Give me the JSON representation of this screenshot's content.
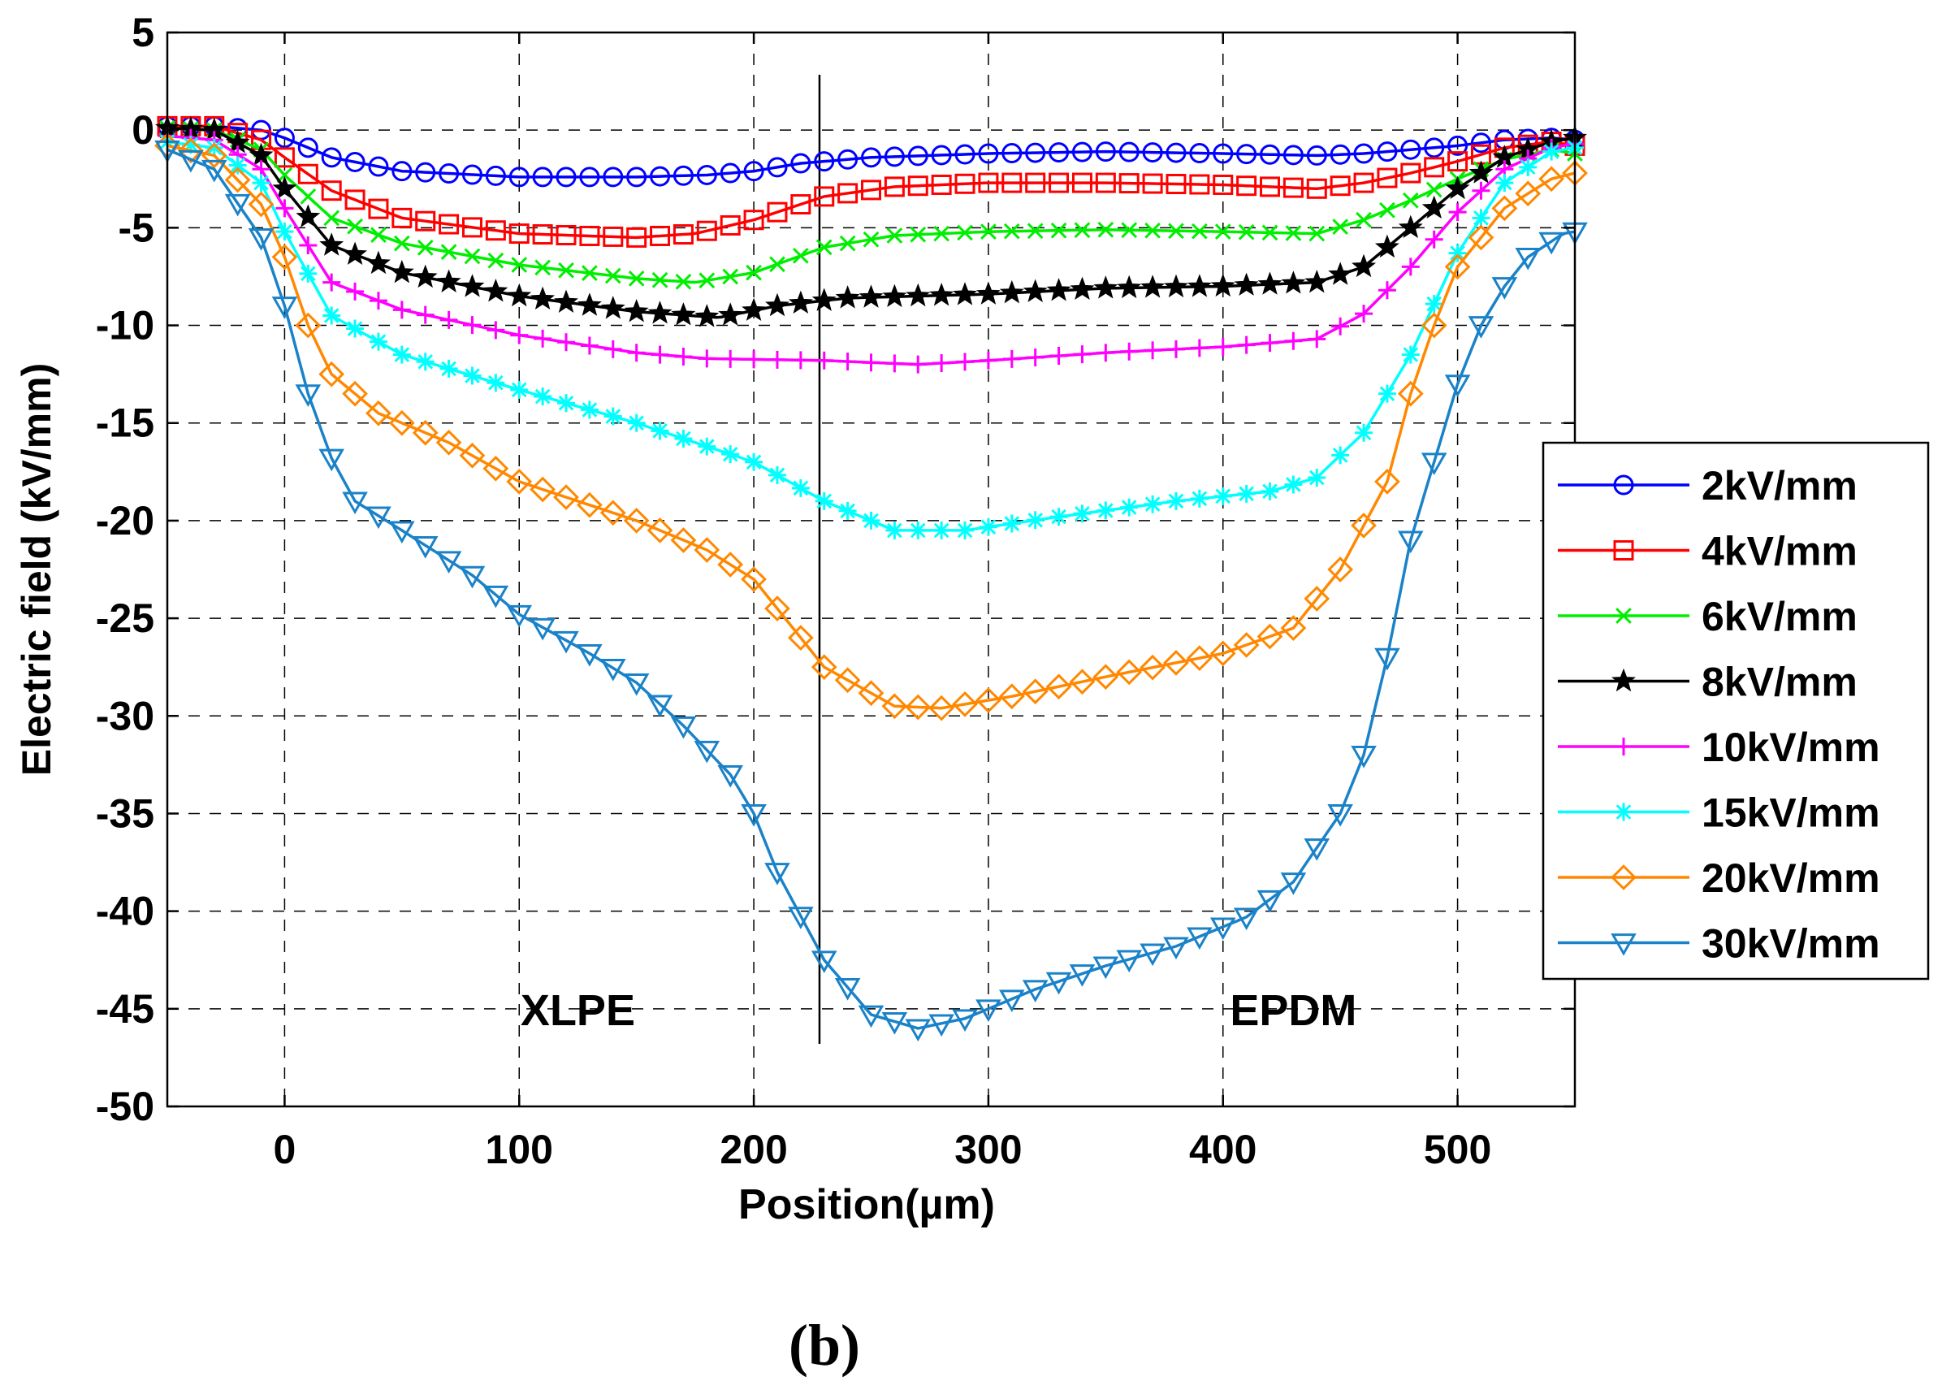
{
  "chart_data": {
    "type": "line",
    "title": "",
    "xlabel": "Position(µm)",
    "ylabel": "Electric field (kV/mm)",
    "xlim": [
      -50,
      550
    ],
    "ylim": [
      -50,
      5
    ],
    "xticks": [
      0,
      100,
      200,
      300,
      400,
      500
    ],
    "yticks": [
      5,
      0,
      -5,
      -10,
      -15,
      -20,
      -25,
      -30,
      -35,
      -40,
      -45,
      -50
    ],
    "grid": true,
    "legend_position": "right",
    "interface_x": 228,
    "annotations": [
      {
        "text": "XLPE",
        "x": 125,
        "y": -45
      },
      {
        "text": "EPDM",
        "x": 430,
        "y": -45
      }
    ],
    "caption": "(b)",
    "series": [
      {
        "name": "2kV/mm",
        "color": "#0000ff",
        "marker": "circle",
        "points": [
          [
            -50,
            0.2
          ],
          [
            -30,
            0.2
          ],
          [
            -10,
            0
          ],
          [
            0,
            -0.4
          ],
          [
            20,
            -1.4
          ],
          [
            50,
            -2.1
          ],
          [
            100,
            -2.4
          ],
          [
            150,
            -2.4
          ],
          [
            180,
            -2.3
          ],
          [
            200,
            -2.1
          ],
          [
            220,
            -1.7
          ],
          [
            250,
            -1.4
          ],
          [
            300,
            -1.2
          ],
          [
            350,
            -1.1
          ],
          [
            400,
            -1.2
          ],
          [
            440,
            -1.3
          ],
          [
            460,
            -1.2
          ],
          [
            480,
            -1.0
          ],
          [
            500,
            -0.8
          ],
          [
            520,
            -0.5
          ],
          [
            540,
            -0.4
          ],
          [
            550,
            -0.5
          ]
        ]
      },
      {
        "name": "4kV/mm",
        "color": "#ff0000",
        "marker": "square",
        "points": [
          [
            -50,
            0.2
          ],
          [
            -30,
            0.2
          ],
          [
            -10,
            -0.5
          ],
          [
            0,
            -1.4
          ],
          [
            20,
            -3.1
          ],
          [
            50,
            -4.5
          ],
          [
            100,
            -5.3
          ],
          [
            150,
            -5.5
          ],
          [
            175,
            -5.3
          ],
          [
            200,
            -4.6
          ],
          [
            230,
            -3.4
          ],
          [
            260,
            -2.9
          ],
          [
            300,
            -2.7
          ],
          [
            350,
            -2.7
          ],
          [
            400,
            -2.8
          ],
          [
            440,
            -3.0
          ],
          [
            460,
            -2.7
          ],
          [
            480,
            -2.2
          ],
          [
            500,
            -1.6
          ],
          [
            520,
            -0.9
          ],
          [
            540,
            -0.6
          ],
          [
            550,
            -0.8
          ]
        ]
      },
      {
        "name": "6kV/mm",
        "color": "#00ee00",
        "marker": "x",
        "points": [
          [
            -50,
            0.1
          ],
          [
            -30,
            0
          ],
          [
            -10,
            -1.0
          ],
          [
            0,
            -2.3
          ],
          [
            20,
            -4.5
          ],
          [
            50,
            -5.8
          ],
          [
            100,
            -6.9
          ],
          [
            150,
            -7.6
          ],
          [
            175,
            -7.8
          ],
          [
            200,
            -7.3
          ],
          [
            230,
            -6.0
          ],
          [
            260,
            -5.4
          ],
          [
            300,
            -5.2
          ],
          [
            350,
            -5.1
          ],
          [
            400,
            -5.2
          ],
          [
            440,
            -5.3
          ],
          [
            460,
            -4.6
          ],
          [
            480,
            -3.6
          ],
          [
            500,
            -2.5
          ],
          [
            520,
            -1.5
          ],
          [
            540,
            -1.0
          ],
          [
            550,
            -1.2
          ]
        ]
      },
      {
        "name": "8kV/mm",
        "color": "#000000",
        "marker": "star",
        "points": [
          [
            -50,
            0.1
          ],
          [
            -30,
            0
          ],
          [
            -10,
            -1.3
          ],
          [
            0,
            -3.0
          ],
          [
            20,
            -5.9
          ],
          [
            50,
            -7.3
          ],
          [
            100,
            -8.5
          ],
          [
            150,
            -9.3
          ],
          [
            185,
            -9.6
          ],
          [
            210,
            -9.0
          ],
          [
            240,
            -8.6
          ],
          [
            300,
            -8.4
          ],
          [
            350,
            -8.1
          ],
          [
            400,
            -8.0
          ],
          [
            440,
            -7.8
          ],
          [
            460,
            -7.0
          ],
          [
            480,
            -5.0
          ],
          [
            500,
            -3.0
          ],
          [
            520,
            -1.4
          ],
          [
            540,
            -0.6
          ],
          [
            550,
            -0.4
          ]
        ]
      },
      {
        "name": "10kV/mm",
        "color": "#ff00ff",
        "marker": "plus",
        "points": [
          [
            -50,
            -0.3
          ],
          [
            -30,
            -0.5
          ],
          [
            -10,
            -2.0
          ],
          [
            0,
            -4.0
          ],
          [
            20,
            -7.8
          ],
          [
            50,
            -9.2
          ],
          [
            100,
            -10.5
          ],
          [
            150,
            -11.4
          ],
          [
            180,
            -11.7
          ],
          [
            230,
            -11.8
          ],
          [
            270,
            -12.0
          ],
          [
            300,
            -11.8
          ],
          [
            350,
            -11.4
          ],
          [
            400,
            -11.1
          ],
          [
            440,
            -10.7
          ],
          [
            460,
            -9.4
          ],
          [
            480,
            -7.0
          ],
          [
            500,
            -4.2
          ],
          [
            520,
            -2.0
          ],
          [
            540,
            -0.9
          ],
          [
            550,
            -0.7
          ]
        ]
      },
      {
        "name": "15kV/mm",
        "color": "#00ffff",
        "marker": "asterisk",
        "points": [
          [
            -50,
            -0.6
          ],
          [
            -30,
            -0.9
          ],
          [
            -10,
            -2.7
          ],
          [
            0,
            -5.2
          ],
          [
            20,
            -9.5
          ],
          [
            50,
            -11.5
          ],
          [
            100,
            -13.3
          ],
          [
            150,
            -15.0
          ],
          [
            200,
            -17.0
          ],
          [
            230,
            -19.0
          ],
          [
            260,
            -20.5
          ],
          [
            290,
            -20.5
          ],
          [
            330,
            -19.8
          ],
          [
            380,
            -19.0
          ],
          [
            420,
            -18.5
          ],
          [
            440,
            -17.8
          ],
          [
            460,
            -15.5
          ],
          [
            480,
            -11.5
          ],
          [
            500,
            -6.3
          ],
          [
            520,
            -2.7
          ],
          [
            540,
            -1.1
          ],
          [
            550,
            -0.9
          ]
        ]
      },
      {
        "name": "20kV/mm",
        "color": "#ff8800",
        "marker": "diamond",
        "points": [
          [
            -50,
            -0.8
          ],
          [
            -30,
            -1.3
          ],
          [
            -10,
            -3.8
          ],
          [
            0,
            -6.5
          ],
          [
            10,
            -10.0
          ],
          [
            20,
            -12.5
          ],
          [
            40,
            -14.5
          ],
          [
            70,
            -16.0
          ],
          [
            100,
            -18.0
          ],
          [
            150,
            -20.0
          ],
          [
            180,
            -21.5
          ],
          [
            200,
            -23.0
          ],
          [
            230,
            -27.5
          ],
          [
            260,
            -29.5
          ],
          [
            280,
            -29.6
          ],
          [
            310,
            -29.0
          ],
          [
            350,
            -28.0
          ],
          [
            400,
            -26.8
          ],
          [
            430,
            -25.5
          ],
          [
            450,
            -22.5
          ],
          [
            470,
            -18.0
          ],
          [
            480,
            -13.5
          ],
          [
            490,
            -10.0
          ],
          [
            500,
            -7.0
          ],
          [
            520,
            -4.0
          ],
          [
            540,
            -2.5
          ],
          [
            550,
            -2.2
          ]
        ]
      },
      {
        "name": "30kV/mm",
        "color": "#1a82c8",
        "marker": "triangle-down",
        "points": [
          [
            -50,
            -1.0
          ],
          [
            -30,
            -2.0
          ],
          [
            -10,
            -5.5
          ],
          [
            0,
            -9.0
          ],
          [
            10,
            -13.5
          ],
          [
            20,
            -16.8
          ],
          [
            30,
            -19.0
          ],
          [
            50,
            -20.5
          ],
          [
            80,
            -22.8
          ],
          [
            100,
            -24.8
          ],
          [
            130,
            -26.8
          ],
          [
            150,
            -28.3
          ],
          [
            170,
            -30.5
          ],
          [
            190,
            -33.0
          ],
          [
            200,
            -35.0
          ],
          [
            210,
            -38.0
          ],
          [
            230,
            -42.5
          ],
          [
            250,
            -45.3
          ],
          [
            270,
            -46.0
          ],
          [
            290,
            -45.5
          ],
          [
            320,
            -44.0
          ],
          [
            350,
            -42.8
          ],
          [
            380,
            -41.8
          ],
          [
            410,
            -40.3
          ],
          [
            430,
            -38.5
          ],
          [
            450,
            -35.0
          ],
          [
            460,
            -32.0
          ],
          [
            470,
            -27.0
          ],
          [
            480,
            -21.0
          ],
          [
            490,
            -17.0
          ],
          [
            500,
            -13.0
          ],
          [
            510,
            -10.0
          ],
          [
            520,
            -8.0
          ],
          [
            530,
            -6.5
          ],
          [
            545,
            -5.3
          ],
          [
            550,
            -5.2
          ]
        ]
      }
    ]
  }
}
